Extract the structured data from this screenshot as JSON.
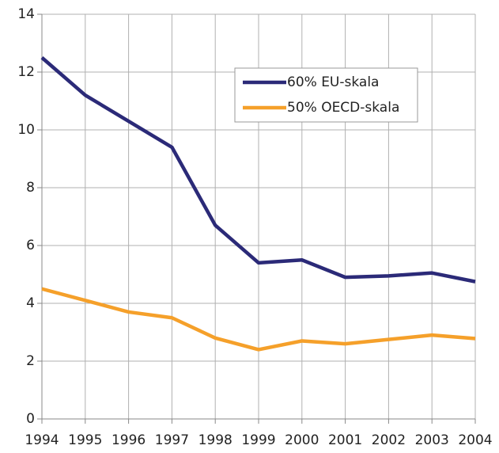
{
  "chart_data": {
    "type": "line",
    "x": [
      1994,
      1995,
      1996,
      1997,
      1998,
      1999,
      2000,
      2001,
      2002,
      2003,
      2004
    ],
    "series": [
      {
        "name": "60% EU-skala",
        "color": "#2b2a78",
        "values": [
          12.5,
          11.2,
          10.3,
          9.4,
          6.7,
          5.4,
          5.5,
          4.9,
          4.95,
          5.05,
          4.75
        ]
      },
      {
        "name": "50% OECD-skala",
        "color": "#f5a02a",
        "values": [
          4.5,
          4.1,
          3.7,
          3.5,
          2.8,
          2.4,
          2.7,
          2.6,
          2.75,
          2.9,
          2.78
        ]
      }
    ],
    "xlim": [
      1994,
      2004
    ],
    "xticks": [
      1994,
      1995,
      1996,
      1997,
      1998,
      1999,
      2000,
      2001,
      2002,
      2003,
      2004
    ],
    "ylim": [
      0,
      14
    ],
    "yticks": [
      0,
      2,
      4,
      6,
      8,
      10,
      12,
      14
    ],
    "grid": true,
    "legend": "upper right"
  }
}
